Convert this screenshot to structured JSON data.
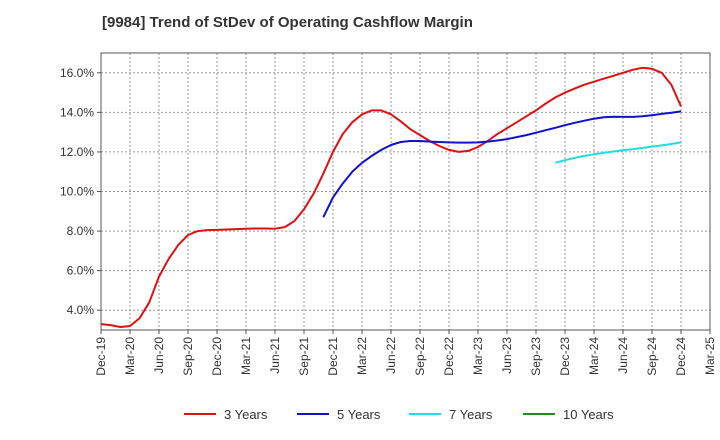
{
  "chart_data": {
    "type": "line",
    "title": "[9984]  Trend of StDev of Operating Cashflow Margin",
    "xlabel": "",
    "ylabel": "",
    "y_unit": "percent",
    "ylim": [
      3.0,
      17.0
    ],
    "y_ticks": [
      4.0,
      6.0,
      8.0,
      10.0,
      12.0,
      14.0,
      16.0
    ],
    "y_tick_labels": [
      "4.0%",
      "6.0%",
      "8.0%",
      "10.0%",
      "12.0%",
      "14.0%",
      "16.0%"
    ],
    "x_range": [
      "2019-12",
      "2025-03"
    ],
    "x_tick_labels": [
      "Dec-19",
      "Mar-20",
      "Jun-20",
      "Sep-20",
      "Dec-20",
      "Mar-21",
      "Jun-21",
      "Sep-21",
      "Dec-21",
      "Mar-22",
      "Jun-22",
      "Sep-22",
      "Dec-22",
      "Mar-23",
      "Jun-23",
      "Sep-23",
      "Dec-23",
      "Mar-24",
      "Jun-24",
      "Sep-24",
      "Dec-24",
      "Mar-25"
    ],
    "grid": true,
    "legend_position": "bottom",
    "series": [
      {
        "name": "3 Years",
        "color": "#dd1111",
        "points": [
          [
            "2019-12",
            3.3
          ],
          [
            "2020-01",
            3.25
          ],
          [
            "2020-02",
            3.15
          ],
          [
            "2020-03",
            3.2
          ],
          [
            "2020-04",
            3.6
          ],
          [
            "2020-05",
            4.4
          ],
          [
            "2020-06",
            5.7
          ],
          [
            "2020-07",
            6.6
          ],
          [
            "2020-08",
            7.3
          ],
          [
            "2020-09",
            7.8
          ],
          [
            "2020-10",
            8.0
          ],
          [
            "2020-11",
            8.05
          ],
          [
            "2020-12",
            8.06
          ],
          [
            "2021-01",
            8.08
          ],
          [
            "2021-02",
            8.1
          ],
          [
            "2021-03",
            8.12
          ],
          [
            "2021-04",
            8.13
          ],
          [
            "2021-05",
            8.13
          ],
          [
            "2021-06",
            8.12
          ],
          [
            "2021-07",
            8.2
          ],
          [
            "2021-08",
            8.5
          ],
          [
            "2021-09",
            9.1
          ],
          [
            "2021-10",
            9.9
          ],
          [
            "2021-11",
            10.9
          ],
          [
            "2021-12",
            12.0
          ],
          [
            "2022-01",
            12.9
          ],
          [
            "2022-02",
            13.5
          ],
          [
            "2022-03",
            13.9
          ],
          [
            "2022-04",
            14.1
          ],
          [
            "2022-05",
            14.1
          ],
          [
            "2022-06",
            13.9
          ],
          [
            "2022-07",
            13.55
          ],
          [
            "2022-08",
            13.15
          ],
          [
            "2022-09",
            12.85
          ],
          [
            "2022-10",
            12.55
          ],
          [
            "2022-11",
            12.3
          ],
          [
            "2022-12",
            12.1
          ],
          [
            "2023-01",
            12.0
          ],
          [
            "2023-02",
            12.05
          ],
          [
            "2023-03",
            12.25
          ],
          [
            "2023-04",
            12.55
          ],
          [
            "2023-05",
            12.9
          ],
          [
            "2023-06",
            13.2
          ],
          [
            "2023-07",
            13.5
          ],
          [
            "2023-08",
            13.8
          ],
          [
            "2023-09",
            14.1
          ],
          [
            "2023-10",
            14.45
          ],
          [
            "2023-11",
            14.75
          ],
          [
            "2023-12",
            15.0
          ],
          [
            "2024-01",
            15.2
          ],
          [
            "2024-02",
            15.4
          ],
          [
            "2024-03",
            15.55
          ],
          [
            "2024-04",
            15.7
          ],
          [
            "2024-05",
            15.85
          ],
          [
            "2024-06",
            16.0
          ],
          [
            "2024-07",
            16.15
          ],
          [
            "2024-08",
            16.25
          ],
          [
            "2024-09",
            16.2
          ],
          [
            "2024-10",
            16.0
          ],
          [
            "2024-11",
            15.4
          ],
          [
            "2024-12",
            14.3
          ]
        ]
      },
      {
        "name": "5 Years",
        "color": "#1111cc",
        "points": [
          [
            "2021-11",
            8.7
          ],
          [
            "2021-12",
            9.7
          ],
          [
            "2022-01",
            10.4
          ],
          [
            "2022-02",
            11.0
          ],
          [
            "2022-03",
            11.45
          ],
          [
            "2022-04",
            11.8
          ],
          [
            "2022-05",
            12.1
          ],
          [
            "2022-06",
            12.35
          ],
          [
            "2022-07",
            12.5
          ],
          [
            "2022-08",
            12.55
          ],
          [
            "2022-09",
            12.55
          ],
          [
            "2022-10",
            12.52
          ],
          [
            "2022-11",
            12.5
          ],
          [
            "2022-12",
            12.48
          ],
          [
            "2023-01",
            12.47
          ],
          [
            "2023-02",
            12.47
          ],
          [
            "2023-03",
            12.48
          ],
          [
            "2023-04",
            12.52
          ],
          [
            "2023-05",
            12.58
          ],
          [
            "2023-06",
            12.65
          ],
          [
            "2023-07",
            12.75
          ],
          [
            "2023-08",
            12.85
          ],
          [
            "2023-09",
            12.97
          ],
          [
            "2023-10",
            13.1
          ],
          [
            "2023-11",
            13.22
          ],
          [
            "2023-12",
            13.35
          ],
          [
            "2024-01",
            13.47
          ],
          [
            "2024-02",
            13.58
          ],
          [
            "2024-03",
            13.68
          ],
          [
            "2024-04",
            13.75
          ],
          [
            "2024-05",
            13.78
          ],
          [
            "2024-06",
            13.77
          ],
          [
            "2024-07",
            13.77
          ],
          [
            "2024-08",
            13.8
          ],
          [
            "2024-09",
            13.85
          ],
          [
            "2024-10",
            13.92
          ],
          [
            "2024-11",
            13.98
          ],
          [
            "2024-12",
            14.05
          ]
        ]
      },
      {
        "name": "7 Years",
        "color": "#22dddd",
        "points": [
          [
            "2023-11",
            11.45
          ],
          [
            "2023-12",
            11.58
          ],
          [
            "2024-01",
            11.7
          ],
          [
            "2024-02",
            11.8
          ],
          [
            "2024-03",
            11.88
          ],
          [
            "2024-04",
            11.95
          ],
          [
            "2024-05",
            12.02
          ],
          [
            "2024-06",
            12.08
          ],
          [
            "2024-07",
            12.14
          ],
          [
            "2024-08",
            12.2
          ],
          [
            "2024-09",
            12.27
          ],
          [
            "2024-10",
            12.33
          ],
          [
            "2024-11",
            12.4
          ],
          [
            "2024-12",
            12.48
          ]
        ]
      },
      {
        "name": "10 Years",
        "color": "#228822",
        "points": []
      }
    ]
  }
}
